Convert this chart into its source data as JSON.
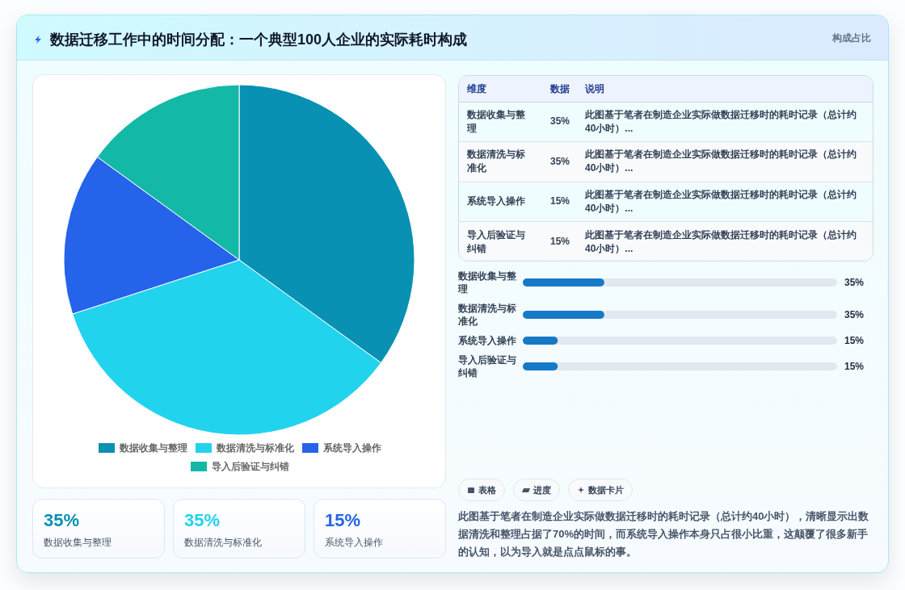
{
  "chart_data": [
    {
      "type": "pie",
      "title": "数据迁移工作中的时间分配：一个典型100人企业的实际耗时构成",
      "categories": [
        "数据收集与整理",
        "数据清洗与标准化",
        "系统导入操作",
        "导入后验证与纠错"
      ],
      "values": [
        35,
        35,
        15,
        15
      ],
      "colors": [
        "#0891b2",
        "#22d3ee",
        "#2563eb",
        "#14b8a6"
      ],
      "legend": "bottom",
      "annotations": [
        "构成占比"
      ]
    },
    {
      "type": "other",
      "categories": [
        "数据收集与整理",
        "数据清洗与标准化",
        "系统导入操作",
        "导入后验证与纠错"
      ],
      "value_labels": [
        "35%",
        "35%",
        "15%",
        "15%"
      ],
      "annotations": [
        "维度",
        "数据",
        "说明",
        "此图基于笔者在制造企业实际做数据迁移时的耗时记录（总计约40小时）...",
        "此图基于笔者在制造企业实际做数据迁移时的耗时记录（总计约40小时）...",
        "此图基于笔者在制造企业实际做数据迁移时的耗时记录（总计约40小时）...",
        "此图基于笔者在制造企业实际做数据迁移时的耗时记录（总计约40小时）..."
      ]
    },
    {
      "type": "bar",
      "orientation": "horizontal",
      "categories": [
        "数据收集与整理",
        "数据清洗与标准化",
        "系统导入操作",
        "导入后验证与纠错"
      ],
      "values": [
        35,
        35,
        15,
        15
      ],
      "value_labels": [
        "35%",
        "35%",
        "15%",
        "15%"
      ],
      "color": "#1679c7",
      "xlim": [
        0,
        135
      ],
      "tick_labels": "y"
    },
    {
      "type": "other",
      "categories": [
        "数据收集与整理",
        "数据清洗与标准化",
        "系统导入操作"
      ],
      "value_labels": [
        "35%",
        "35%",
        "15%"
      ]
    },
    {
      "type": "other",
      "annotations": [
        "表格",
        "进度",
        "数据卡片",
        "此图基于笔者在制造企业实际做数据迁移时的耗时记录（总计约40小时），清晰显示出数据清洗和整理占据了70%的时间，而系统导入操作本身只占很小比重，这颠覆了很多新手的认知，以为导入就是点点鼠标的事。"
      ]
    }
  ]
}
